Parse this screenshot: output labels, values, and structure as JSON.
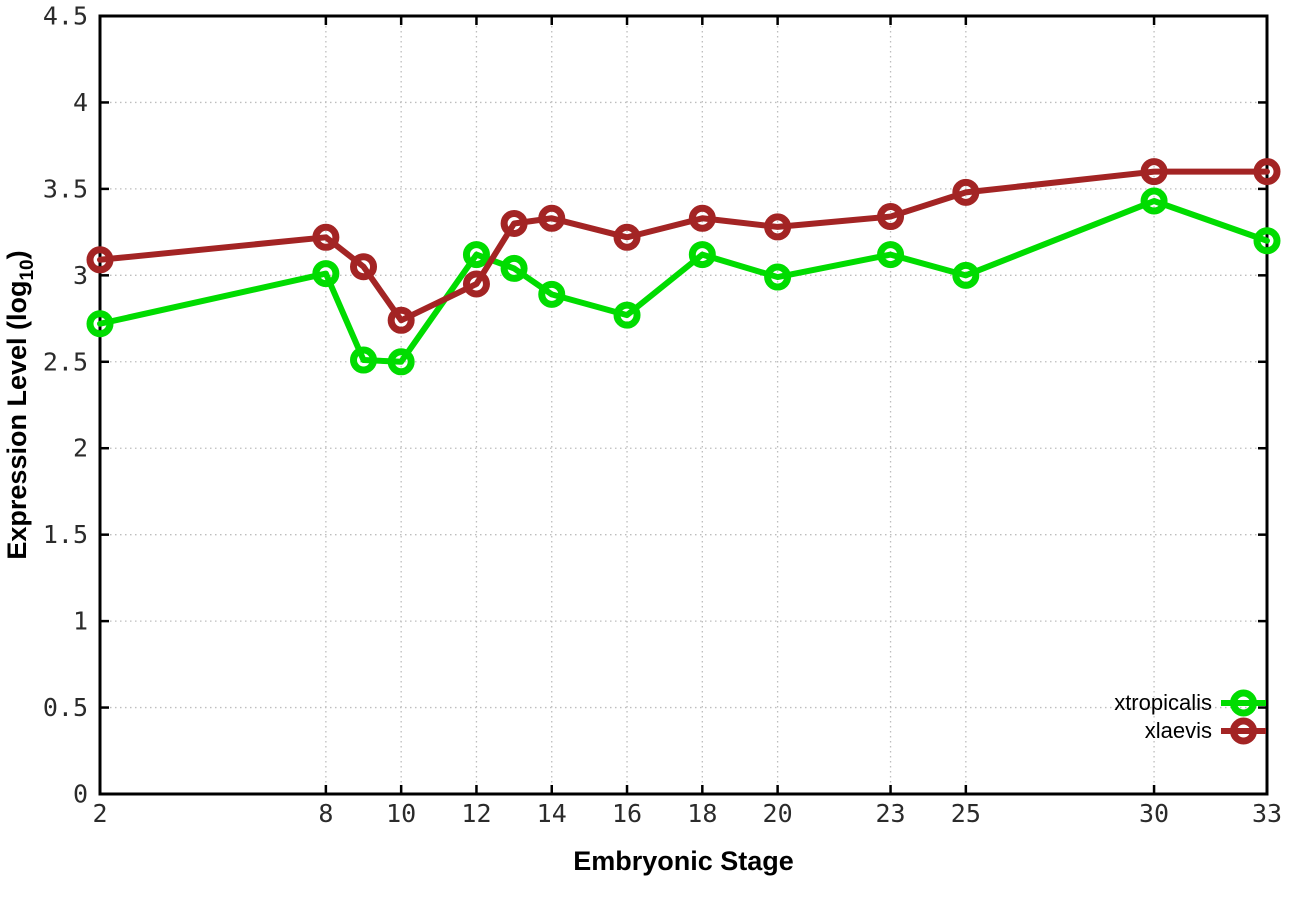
{
  "figure": {
    "background": "#ffffff",
    "border_color": "#000000",
    "grid_color": "#bdbdbd",
    "tick_label_color": "#2b2b2b"
  },
  "chart_data": {
    "type": "line",
    "title": "",
    "xlabel": "Embryonic Stage",
    "ylabel": "Expression Level (log10)",
    "ylabel_parts": {
      "main": "Expression Level (log",
      "sub": "10",
      "close": ")"
    },
    "xlim": [
      2,
      33
    ],
    "ylim": [
      0,
      4.5
    ],
    "x_ticks": [
      2,
      8,
      10,
      12,
      14,
      16,
      18,
      20,
      23,
      25,
      30,
      33
    ],
    "x_tick_labels": [
      "2",
      "8",
      "10",
      "12",
      "14",
      "16",
      "18",
      "20",
      "23",
      "25",
      "30",
      "33"
    ],
    "y_ticks": [
      0,
      0.5,
      1,
      1.5,
      2,
      2.5,
      3,
      3.5,
      4,
      4.5
    ],
    "y_tick_labels": [
      "0",
      "0.5",
      "1",
      "1.5",
      "2",
      "2.5",
      "3",
      "3.5",
      "4",
      "4.5"
    ],
    "grid": true,
    "legend_position": "inside-bottom-right",
    "marker": "open-circle",
    "x": [
      2,
      8,
      9,
      10,
      12,
      13,
      14,
      16,
      18,
      20,
      23,
      25,
      30,
      33
    ],
    "series": [
      {
        "name": "xtropicalis",
        "color": "#00dc00",
        "values": [
          2.72,
          3.01,
          2.51,
          2.5,
          3.12,
          3.04,
          2.89,
          2.77,
          3.12,
          2.99,
          3.12,
          3.0,
          3.43,
          3.2
        ]
      },
      {
        "name": "xlaevis",
        "color": "#a32424",
        "values": [
          3.09,
          3.22,
          3.05,
          2.74,
          2.95,
          3.3,
          3.33,
          3.22,
          3.33,
          3.28,
          3.34,
          3.48,
          3.6,
          3.6
        ]
      }
    ]
  }
}
